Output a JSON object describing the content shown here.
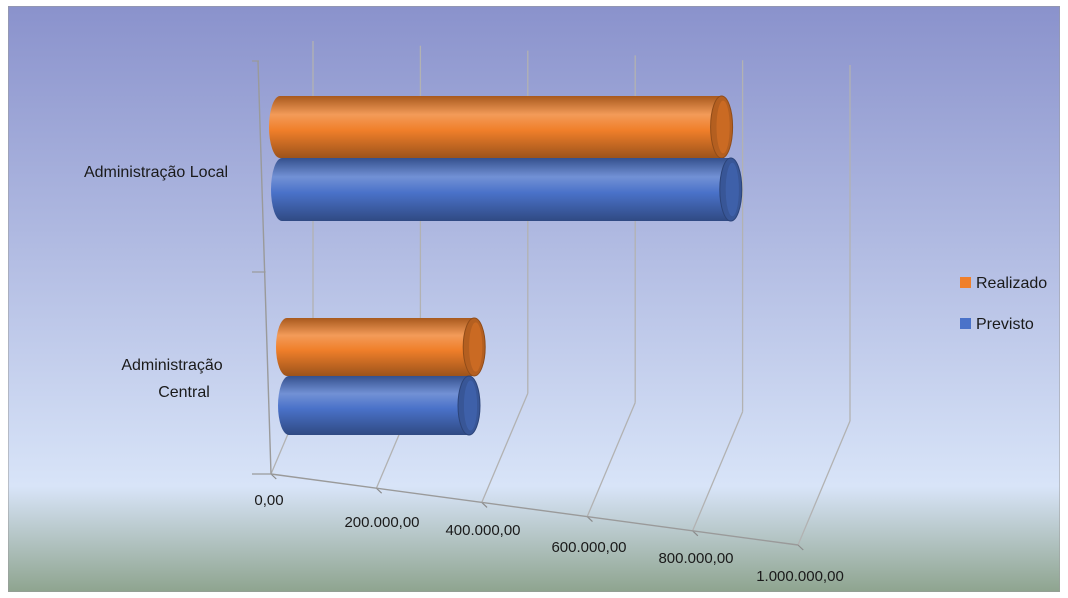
{
  "chart_data": {
    "type": "bar",
    "orientation": "horizontal",
    "style": "3d-cylinder",
    "categories": [
      "Administração Local",
      "Administração Central"
    ],
    "series": [
      {
        "name": "Realizado",
        "color": "#f07f2a",
        "values": [
          920000,
          390000
        ]
      },
      {
        "name": "Previsto",
        "color": "#4a72c9",
        "values": [
          935000,
          375000
        ]
      }
    ],
    "x_ticks": [
      "0,00",
      "200.000,00",
      "400.000,00",
      "600.000,00",
      "800.000,00",
      "1.000.000,00"
    ],
    "xlim": [
      0,
      1000000
    ],
    "grid": true,
    "legend_position": "right",
    "background": [
      "#8a92cc",
      "#d8e4f8",
      "#8ea48f"
    ]
  }
}
